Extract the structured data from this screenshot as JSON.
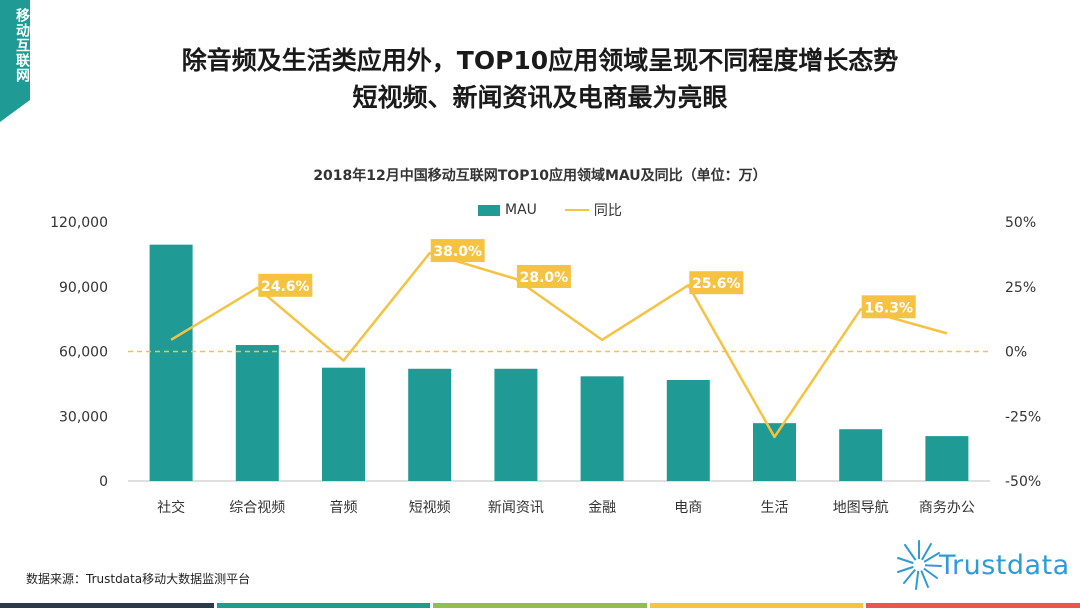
{
  "side_tag": "移动互联网",
  "headline": {
    "line1": "除音频及生活类应用外，TOP10应用领域呈现不同程度增长态势",
    "line2": "短视频、新闻资讯及电商最为亮眼"
  },
  "chart_data": {
    "type": "bar",
    "title": "2018年12月中国移动互联网TOP10应用领域MAU及同比（单位：万）",
    "legend": [
      "MAU",
      "同比"
    ],
    "categories": [
      "社交",
      "综合视频",
      "音频",
      "短视频",
      "新闻资讯",
      "金融",
      "电商",
      "生活",
      "地图导航",
      "商务办公"
    ],
    "series": [
      {
        "name": "MAU",
        "type": "bar",
        "axis": "left",
        "color": "#1f9a95",
        "values": [
          109500,
          63000,
          52500,
          52000,
          52000,
          48500,
          46800,
          26800,
          24000,
          20800
        ]
      },
      {
        "name": "同比",
        "type": "line",
        "axis": "right",
        "color": "#f5c242",
        "values": [
          4.5,
          24.6,
          -3.5,
          38.0,
          28.0,
          4.5,
          25.6,
          -33.0,
          16.3,
          7.0
        ],
        "labels": [
          "",
          "24.6%",
          "",
          "38.0%",
          "28.0%",
          "",
          "25.6%",
          "",
          "16.3%",
          ""
        ]
      }
    ],
    "ylim_left": [
      0,
      120000
    ],
    "yticks_left": [
      "0",
      "30,000",
      "60,000",
      "90,000",
      "120,000"
    ],
    "ylim_right": [
      -50,
      50
    ],
    "yticks_right": [
      "-50%",
      "-25%",
      "0%",
      "25%",
      "50%"
    ],
    "zero_reference_line": {
      "axis": "right",
      "value": 0,
      "style": "dashed",
      "color": "#f5c242"
    },
    "grid": false,
    "legend_position": "top-center"
  },
  "source": "数据来源：Trustdata移动大数据监测平台",
  "logo": {
    "word": "Trustdata"
  },
  "footer_colors": [
    "#2b3a4a",
    "#1f9a95",
    "#8cc152",
    "#f5c242",
    "#e8574a"
  ]
}
